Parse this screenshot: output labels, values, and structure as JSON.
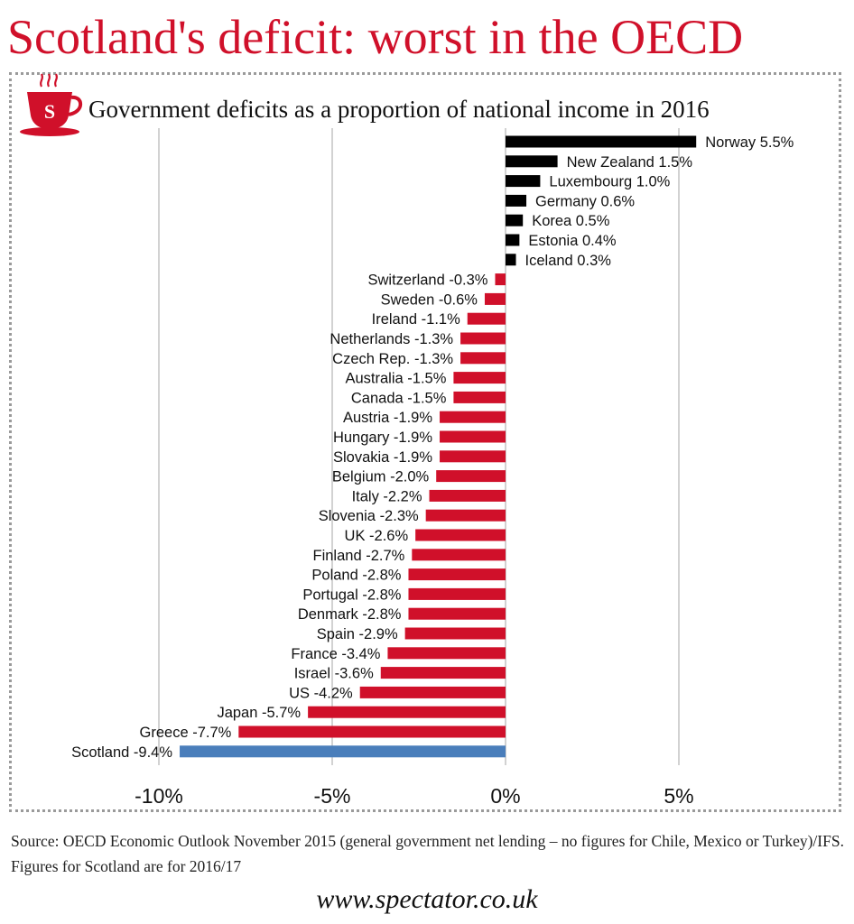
{
  "title": "Scotland's deficit: worst in the OECD",
  "source": "Source: OECD Economic Outlook November 2015 (general government net lending – no figures for Chile, Mexico or Turkey)/IFS. Figures for Scotland are for 2016/17",
  "website": "www.spectator.co.uk",
  "logo_text": "S",
  "colors": {
    "surplus": "#000000",
    "deficit": "#d0102a",
    "highlight": "#4a7ebb",
    "brand": "#d0102a",
    "grid": "#b5b5b5"
  },
  "chart_data": {
    "type": "bar",
    "orientation": "horizontal",
    "title": "Government deficits as a proportion of national income in 2016",
    "xlabel": "",
    "ylabel": "",
    "xlim": [
      -10,
      5
    ],
    "ticks": [
      -10,
      -5,
      0,
      5
    ],
    "tick_labels": [
      "-10%",
      "-5%",
      "0%",
      "5%"
    ],
    "grid": true,
    "categories": [
      "Norway",
      "New Zealand",
      "Luxembourg",
      "Germany",
      "Korea",
      "Estonia",
      "Iceland",
      "Switzerland",
      "Sweden",
      "Ireland",
      "Netherlands",
      "Czech Rep.",
      "Australia",
      "Canada",
      "Austria",
      "Hungary",
      "Slovakia",
      "Belgium",
      "Italy",
      "Slovenia",
      "UK",
      "Finland",
      "Poland",
      "Portugal",
      "Denmark",
      "Spain",
      "France",
      "Israel",
      "US",
      "Japan",
      "Greece",
      "Scotland"
    ],
    "values": [
      5.5,
      1.5,
      1.0,
      0.6,
      0.5,
      0.4,
      0.3,
      -0.3,
      -0.6,
      -1.1,
      -1.3,
      -1.3,
      -1.5,
      -1.5,
      -1.9,
      -1.9,
      -1.9,
      -2.0,
      -2.2,
      -2.3,
      -2.6,
      -2.7,
      -2.8,
      -2.8,
      -2.8,
      -2.9,
      -3.4,
      -3.6,
      -4.2,
      -5.7,
      -7.7,
      -9.4
    ],
    "labels": [
      "Norway 5.5%",
      "New Zealand 1.5%",
      "Luxembourg 1.0%",
      "Germany 0.6%",
      "Korea 0.5%",
      "Estonia 0.4%",
      "Iceland 0.3%",
      "Switzerland -0.3%",
      "Sweden -0.6%",
      "Ireland -1.1%",
      "Netherlands -1.3%",
      "Czech Rep. -1.3%",
      "Australia -1.5%",
      "Canada -1.5%",
      "Austria -1.9%",
      "Hungary -1.9%",
      "Slovakia -1.9%",
      "Belgium -2.0%",
      "Italy -2.2%",
      "Slovenia -2.3%",
      "UK -2.6%",
      "Finland -2.7%",
      "Poland -2.8%",
      "Portugal -2.8%",
      "Denmark -2.8%",
      "Spain -2.9%",
      "France -3.4%",
      "Israel -3.6%",
      "US -4.2%",
      "Japan -5.7%",
      "Greece -7.7%",
      "Scotland -9.4%"
    ],
    "highlight": "Scotland"
  }
}
